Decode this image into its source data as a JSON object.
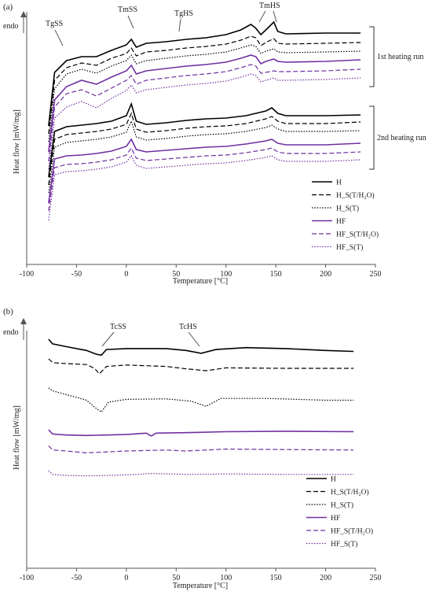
{
  "panels": [
    {
      "panel_label": "(a)",
      "endo_label": "endo",
      "bracket_labels": [
        "1st heating run",
        "2nd heating run"
      ],
      "annotations": [
        "TgSS",
        "TmSS",
        "TgHS",
        "TmHS"
      ]
    },
    {
      "panel_label": "(b)",
      "endo_label": "endo",
      "bracket_labels": [],
      "annotations": [
        "TcSS",
        "TcHS"
      ]
    }
  ],
  "legend": [
    {
      "label": "H",
      "color": "#000000",
      "dash": "solid"
    },
    {
      "label": "H_S(T/H₂O)",
      "color": "#000000",
      "dash": "dashed"
    },
    {
      "label": "H_S(T)",
      "color": "#000000",
      "dash": "dotted"
    },
    {
      "label": "HF",
      "color": "#7030a0",
      "dash": "solid"
    },
    {
      "label": "HF_S(T/H₂O)",
      "color": "#7030a0",
      "dash": "dashed"
    },
    {
      "label": "HF_S(T)",
      "color": "#7030a0",
      "dash": "dotted"
    }
  ],
  "chart_data": [
    {
      "type": "line",
      "panel": "(a)",
      "xlabel": "Temperature  [°C]",
      "ylabel": "Heat flow  [mW/mg]",
      "xlim": [
        -100,
        250
      ],
      "xticks": [
        -100,
        -50,
        0,
        50,
        100,
        150,
        200,
        250
      ],
      "grid": false,
      "legend_position": "bottom-right",
      "series": [
        {
          "name": "H",
          "run": "1st heating run",
          "x": [
            -78,
            -72,
            -60,
            -45,
            -30,
            -15,
            0,
            5,
            10,
            20,
            40,
            60,
            80,
            100,
            115,
            125,
            130,
            135,
            140,
            148,
            152,
            160,
            200,
            235
          ],
          "y": [
            1.0,
            7.8,
            9.3,
            9.8,
            9.8,
            10.6,
            11.3,
            12.0,
            11.0,
            11.5,
            11.7,
            12.0,
            12.2,
            12.6,
            13.2,
            13.9,
            13.4,
            12.6,
            13.2,
            14.2,
            13.0,
            12.7,
            12.8,
            12.8
          ]
        },
        {
          "name": "H_S(T/H₂O)",
          "run": "1st heating run",
          "x": [
            -78,
            -72,
            -60,
            -45,
            -30,
            -15,
            0,
            5,
            10,
            20,
            40,
            60,
            80,
            100,
            115,
            125,
            130,
            135,
            140,
            148,
            152,
            160,
            200,
            235
          ],
          "y": [
            0.0,
            6.8,
            8.4,
            9.0,
            8.7,
            9.6,
            10.2,
            10.9,
            9.9,
            10.4,
            10.6,
            10.9,
            11.1,
            11.4,
            11.9,
            12.4,
            12.2,
            11.2,
            11.6,
            12.1,
            11.5,
            11.4,
            11.5,
            11.6
          ]
        },
        {
          "name": "H_S(T)",
          "run": "1st heating run",
          "x": [
            -78,
            -72,
            -60,
            -45,
            -30,
            -15,
            0,
            5,
            10,
            20,
            40,
            60,
            80,
            100,
            115,
            125,
            130,
            135,
            140,
            148,
            152,
            160,
            200,
            235
          ],
          "y": [
            -1.0,
            5.7,
            7.6,
            8.2,
            7.7,
            8.6,
            9.3,
            10.0,
            8.9,
            9.3,
            9.6,
            9.9,
            10.1,
            10.4,
            10.9,
            11.3,
            11.1,
            10.2,
            10.5,
            10.8,
            10.4,
            10.3,
            10.4,
            10.5
          ]
        },
        {
          "name": "HF",
          "run": "1st heating run",
          "x": [
            -78,
            -72,
            -60,
            -45,
            -30,
            -15,
            0,
            5,
            10,
            20,
            40,
            60,
            80,
            100,
            115,
            125,
            130,
            135,
            140,
            148,
            152,
            160,
            200,
            235
          ],
          "y": [
            -2.3,
            4.3,
            6.0,
            6.8,
            6.3,
            7.2,
            8.0,
            8.7,
            7.6,
            8.0,
            8.3,
            8.6,
            8.8,
            9.1,
            9.6,
            10.0,
            9.8,
            8.9,
            9.2,
            9.5,
            9.2,
            9.1,
            9.2,
            9.4
          ]
        },
        {
          "name": "HF_S(T/H₂O)",
          "run": "1st heating run",
          "x": [
            -78,
            -72,
            -60,
            -45,
            -30,
            -15,
            0,
            5,
            10,
            20,
            40,
            60,
            80,
            100,
            115,
            125,
            130,
            135,
            140,
            148,
            152,
            160,
            200,
            235
          ],
          "y": [
            -3.5,
            3.4,
            5.1,
            5.6,
            4.8,
            5.8,
            6.8,
            7.4,
            6.3,
            6.8,
            7.1,
            7.4,
            7.6,
            7.9,
            8.4,
            8.8,
            8.6,
            7.7,
            7.8,
            8.0,
            7.9,
            7.9,
            8.0,
            8.2
          ]
        },
        {
          "name": "HF_S(T)",
          "run": "1st heating run",
          "x": [
            -78,
            -72,
            -60,
            -45,
            -30,
            -15,
            0,
            5,
            10,
            20,
            40,
            60,
            80,
            100,
            115,
            125,
            130,
            135,
            140,
            148,
            152,
            160,
            200,
            235
          ],
          "y": [
            -4.5,
            2.0,
            3.4,
            4.1,
            3.3,
            4.5,
            5.5,
            6.2,
            5.2,
            5.6,
            5.9,
            6.2,
            6.4,
            6.7,
            7.2,
            7.6,
            7.4,
            6.6,
            6.8,
            7.1,
            6.8,
            6.8,
            6.9,
            7.1
          ]
        },
        {
          "name": "H",
          "run": "2nd heating run",
          "x": [
            -78,
            -72,
            -60,
            -45,
            -30,
            -15,
            0,
            5,
            10,
            20,
            40,
            60,
            80,
            100,
            120,
            140,
            146,
            152,
            160,
            200,
            235
          ],
          "y": [
            -5.5,
            0.3,
            0.9,
            1.1,
            1.3,
            1.6,
            2.3,
            3.8,
            1.6,
            1.2,
            1.4,
            1.7,
            1.9,
            2.0,
            2.3,
            2.9,
            3.3,
            2.6,
            2.3,
            2.3,
            2.4
          ]
        },
        {
          "name": "H_S(T/H₂O)",
          "run": "2nd heating run",
          "x": [
            -78,
            -72,
            -60,
            -45,
            -30,
            -15,
            0,
            5,
            10,
            20,
            40,
            60,
            80,
            100,
            120,
            140,
            146,
            152,
            160,
            200,
            235
          ],
          "y": [
            -6.5,
            -0.7,
            -0.1,
            0.1,
            0.3,
            0.6,
            1.2,
            2.6,
            0.6,
            0.2,
            0.4,
            0.7,
            0.9,
            1.0,
            1.3,
            1.9,
            2.2,
            1.6,
            1.3,
            1.3,
            1.5
          ]
        },
        {
          "name": "H_S(T)",
          "run": "2nd heating run",
          "x": [
            -78,
            -72,
            -60,
            -45,
            -30,
            -15,
            0,
            5,
            10,
            20,
            40,
            60,
            80,
            100,
            120,
            140,
            146,
            152,
            160,
            200,
            235
          ],
          "y": [
            -7.5,
            -1.7,
            -1.1,
            -0.9,
            -0.7,
            -0.4,
            0.2,
            1.6,
            -0.4,
            -0.8,
            -0.6,
            -0.3,
            -0.1,
            0.0,
            0.3,
            0.8,
            1.1,
            0.6,
            0.3,
            0.3,
            0.4
          ]
        },
        {
          "name": "HF",
          "run": "2nd heating run",
          "x": [
            -78,
            -72,
            -60,
            -45,
            -30,
            -15,
            0,
            5,
            10,
            20,
            40,
            60,
            80,
            100,
            120,
            140,
            146,
            152,
            160,
            200,
            235
          ],
          "y": [
            -8.8,
            -3.2,
            -2.8,
            -2.7,
            -2.5,
            -2.2,
            -1.6,
            -0.7,
            -2.0,
            -2.3,
            -2.1,
            -1.9,
            -1.7,
            -1.6,
            -1.3,
            -0.9,
            -0.7,
            -1.2,
            -1.4,
            -1.4,
            -1.2
          ]
        },
        {
          "name": "HF_S(T/H₂O)",
          "run": "2nd heating run",
          "x": [
            -78,
            -72,
            -60,
            -45,
            -30,
            -15,
            0,
            5,
            10,
            20,
            40,
            60,
            80,
            100,
            120,
            140,
            146,
            152,
            160,
            200,
            235
          ],
          "y": [
            -9.8,
            -4.3,
            -3.9,
            -3.8,
            -3.6,
            -3.3,
            -2.7,
            -1.8,
            -3.1,
            -3.4,
            -3.2,
            -3.0,
            -2.8,
            -2.7,
            -2.4,
            -2.0,
            -1.8,
            -2.3,
            -2.5,
            -2.5,
            -2.3
          ]
        },
        {
          "name": "HF_S(T)",
          "run": "2nd heating run",
          "x": [
            -78,
            -72,
            -60,
            -45,
            -30,
            -15,
            0,
            5,
            10,
            20,
            40,
            60,
            80,
            100,
            120,
            140,
            146,
            152,
            160,
            200,
            235
          ],
          "y": [
            -11.0,
            -5.2,
            -4.8,
            -4.7,
            -4.5,
            -4.2,
            -3.6,
            -2.8,
            -4.0,
            -4.4,
            -4.2,
            -4.0,
            -3.8,
            -3.7,
            -3.4,
            -3.0,
            -2.8,
            -3.3,
            -3.5,
            -3.5,
            -3.3
          ]
        }
      ]
    },
    {
      "type": "line",
      "panel": "(b)",
      "xlabel": "Temperature  [°C]",
      "ylabel": "Heat flow  [mW/mg]",
      "xlim": [
        -100,
        250
      ],
      "xticks": [
        -100,
        -50,
        0,
        50,
        100,
        150,
        200,
        250
      ],
      "grid": false,
      "legend_position": "bottom-right",
      "series": [
        {
          "name": "H",
          "x": [
            -78,
            -74,
            -60,
            -40,
            -30,
            -25,
            -20,
            0,
            40,
            60,
            75,
            90,
            120,
            160,
            200,
            228
          ],
          "y": [
            10.0,
            9.0,
            8.4,
            7.6,
            6.8,
            6.6,
            7.8,
            8.0,
            8.0,
            7.6,
            7.0,
            7.8,
            8.2,
            8.0,
            7.6,
            7.4
          ]
        },
        {
          "name": "H_S(T/H₂O)",
          "x": [
            -78,
            -74,
            -60,
            -40,
            -32,
            -27,
            -20,
            0,
            40,
            60,
            80,
            100,
            160,
            200,
            228
          ],
          "y": [
            5.8,
            5.0,
            4.8,
            4.6,
            3.8,
            2.6,
            4.2,
            4.5,
            4.2,
            3.7,
            3.3,
            3.9,
            3.8,
            3.8,
            3.8
          ]
        },
        {
          "name": "H_S(T)",
          "x": [
            -78,
            -74,
            -60,
            -40,
            -30,
            -25,
            -18,
            0,
            40,
            65,
            80,
            95,
            140,
            200,
            228
          ],
          "y": [
            -0.4,
            -1.0,
            -1.8,
            -3.0,
            -4.8,
            -5.5,
            -3.4,
            -2.8,
            -2.7,
            -3.2,
            -4.3,
            -2.6,
            -2.6,
            -3.0,
            -3.0
          ]
        },
        {
          "name": "HF",
          "x": [
            -78,
            -74,
            -60,
            -40,
            0,
            20,
            25,
            30,
            60,
            100,
            160,
            228
          ],
          "y": [
            -9.3,
            -10.2,
            -10.4,
            -10.5,
            -10.3,
            -10.0,
            -10.6,
            -10.0,
            -9.9,
            -9.7,
            -9.6,
            -9.7
          ]
        },
        {
          "name": "HF_S(T/H₂O)",
          "x": [
            -78,
            -74,
            -60,
            -40,
            0,
            40,
            60,
            100,
            160,
            228
          ],
          "y": [
            -12.7,
            -13.6,
            -13.8,
            -14.2,
            -13.8,
            -13.6,
            -13.8,
            -13.4,
            -13.5,
            -13.6
          ]
        },
        {
          "name": "HF_S(T)",
          "x": [
            -78,
            -74,
            -60,
            -40,
            0,
            25,
            60,
            100,
            160,
            228
          ],
          "y": [
            -18.0,
            -18.8,
            -19.0,
            -19.1,
            -18.9,
            -18.6,
            -18.8,
            -18.7,
            -18.8,
            -18.8
          ]
        }
      ]
    }
  ]
}
